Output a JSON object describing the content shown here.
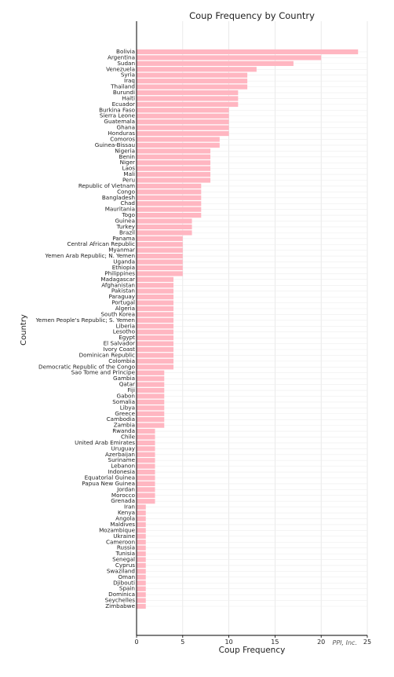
{
  "chart_data": {
    "type": "bar",
    "orientation": "horizontal",
    "title": "Coup Frequency by Country",
    "xlabel": "Coup Frequency",
    "ylabel": "Country",
    "xlim": [
      0,
      25
    ],
    "x_ticks": [
      0,
      5,
      10,
      15,
      20,
      25
    ],
    "grid": true,
    "bar_color": "#ffb6c1",
    "annotation": "PPI, Inc.",
    "categories": [
      "Bolivia",
      "Argentina",
      "Sudan",
      "Venezuela",
      "Syria",
      "Iraq",
      "Thailand",
      "Burundi",
      "Haiti",
      "Ecuador",
      "Burkina Faso",
      "Sierra Leone",
      "Guatemala",
      "Ghana",
      "Honduras",
      "Comoros",
      "Guinea-Bissau",
      "Nigeria",
      "Benin",
      "Niger",
      "Laos",
      "Mali",
      "Peru",
      "Republic of Vietnam",
      "Congo",
      "Bangladesh",
      "Chad",
      "Mauritania",
      "Togo",
      "Guinea",
      "Turkey",
      "Brazil",
      "Panama",
      "Central African Republic",
      "Myanmar",
      "Yemen Arab Republic; N. Yemen",
      "Uganda",
      "Ethiopia",
      "Philippines",
      "Madagascar",
      "Afghanistan",
      "Pakistan",
      "Paraguay",
      "Portugal",
      "Algeria",
      "South Korea",
      "Yemen People's Republic; S. Yemen",
      "Liberia",
      "Lesotho",
      "Egypt",
      "El Salvador",
      "Ivory Coast",
      "Dominican Republic",
      "Colombia",
      "Democratic Republic of the Congo",
      "Sao Tome and Principe",
      "Gambia",
      "Qatar",
      "Fiji",
      "Gabon",
      "Somalia",
      "Libya",
      "Greece",
      "Cambodia",
      "Zambia",
      "Rwanda",
      "Chile",
      "United Arab Emirates",
      "Uruguay",
      "Azerbaijan",
      "Suriname",
      "Lebanon",
      "Indonesia",
      "Equatorial Guinea",
      "Papua New Guinea",
      "Jordan",
      "Morocco",
      "Grenada",
      "Iran",
      "Kenya",
      "Angola",
      "Maldives",
      "Mozambique",
      "Ukraine",
      "Cameroon",
      "Russia",
      "Tunisia",
      "Senegal",
      "Cyprus",
      "Swaziland",
      "Oman",
      "Djibouti",
      "Spain",
      "Dominica",
      "Seychelles",
      "Zimbabwe"
    ],
    "values": [
      24,
      20,
      17,
      13,
      12,
      12,
      12,
      11,
      11,
      11,
      10,
      10,
      10,
      10,
      10,
      9,
      9,
      8,
      8,
      8,
      8,
      8,
      8,
      7,
      7,
      7,
      7,
      7,
      7,
      6,
      6,
      6,
      5,
      5,
      5,
      5,
      5,
      5,
      5,
      4,
      4,
      4,
      4,
      4,
      4,
      4,
      4,
      4,
      4,
      4,
      4,
      4,
      4,
      4,
      4,
      3,
      3,
      3,
      3,
      3,
      3,
      3,
      3,
      3,
      3,
      2,
      2,
      2,
      2,
      2,
      2,
      2,
      2,
      2,
      2,
      2,
      2,
      2,
      1,
      1,
      1,
      1,
      1,
      1,
      1,
      1,
      1,
      1,
      1,
      1,
      1,
      1,
      1,
      1,
      1,
      1
    ]
  }
}
